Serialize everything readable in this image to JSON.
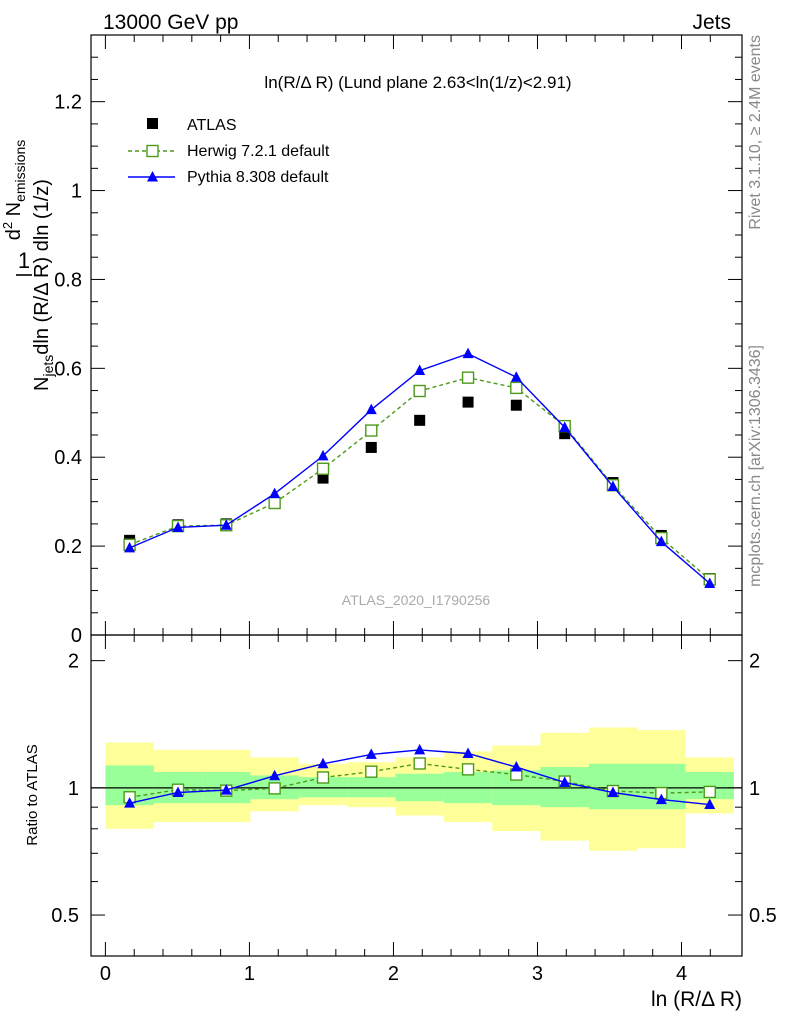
{
  "header": {
    "left": "13000 GeV pp",
    "right": "Jets"
  },
  "side_labels": {
    "rivet": "Rivet 3.1.10, ≥ 2.4M events",
    "mcplots": "mcplots.cern.ch [arXiv:1306.3436]"
  },
  "analysis_id": "ATLAS_2020_I1790256",
  "chart_data": [
    {
      "type": "scatter",
      "panel": "main",
      "title": "ln(R/Δ R) (Lund plane 2.63<ln(1/z)<2.91)",
      "ylabel": "1 / N_jets · d² N_emissions / dln (R/Δ R) dln (1/z)",
      "ylim": [
        0,
        1.35
      ],
      "xlim": [
        -0.1,
        4.42
      ],
      "y_ticks": [
        "0",
        "0.2",
        "0.4",
        "0.6",
        "0.8",
        "1",
        "1.2"
      ],
      "legend_position": "top-left",
      "x": [
        0.168,
        0.504,
        0.839,
        1.175,
        1.511,
        1.846,
        2.182,
        2.518,
        2.853,
        3.189,
        3.524,
        3.86,
        4.196
      ],
      "series": [
        {
          "name": "ATLAS",
          "color": "#000000",
          "marker": "filled-square",
          "values": [
            0.213,
            0.248,
            0.25,
            0.298,
            0.353,
            0.422,
            0.483,
            0.524,
            0.517,
            0.453,
            0.343,
            0.224,
            0.127
          ]
        },
        {
          "name": "Herwig 7.2.1 default",
          "color": "#4d9a1b",
          "marker": "open-square",
          "line": "dashed",
          "values": [
            0.203,
            0.245,
            0.247,
            0.297,
            0.374,
            0.46,
            0.549,
            0.579,
            0.556,
            0.47,
            0.337,
            0.218,
            0.125
          ]
        },
        {
          "name": "Pythia 8.308 default",
          "color": "#0000ff",
          "marker": "filled-triangle",
          "line": "solid",
          "values": [
            0.196,
            0.242,
            0.247,
            0.318,
            0.403,
            0.507,
            0.595,
            0.633,
            0.58,
            0.467,
            0.334,
            0.21,
            0.116
          ]
        }
      ]
    },
    {
      "type": "line",
      "panel": "ratio",
      "ylabel": "Ratio to ATLAS",
      "ylim": [
        0.4,
        2.3
      ],
      "y_ticks": [
        "0.5",
        "1",
        "2"
      ],
      "xlabel": "ln (R/Δ R)",
      "x_ticks": [
        "0",
        "1",
        "2",
        "3",
        "4"
      ],
      "x": [
        0.168,
        0.504,
        0.839,
        1.175,
        1.511,
        1.846,
        2.182,
        2.518,
        2.853,
        3.189,
        3.524,
        3.86,
        4.196
      ],
      "bin_edges": [
        0.0,
        0.336,
        0.672,
        1.007,
        1.343,
        1.679,
        2.014,
        2.35,
        2.686,
        3.021,
        3.357,
        3.692,
        4.028,
        4.364
      ],
      "bands": {
        "yellow_color": "#ffff99",
        "green_color": "#99ff99",
        "yellow_low": [
          0.8,
          0.83,
          0.83,
          0.88,
          0.91,
          0.9,
          0.86,
          0.83,
          0.79,
          0.75,
          0.71,
          0.72,
          0.87
        ],
        "yellow_high": [
          1.28,
          1.23,
          1.23,
          1.18,
          1.14,
          1.15,
          1.18,
          1.22,
          1.26,
          1.35,
          1.39,
          1.37,
          1.18
        ],
        "green_low": [
          0.91,
          0.92,
          0.92,
          0.94,
          0.95,
          0.95,
          0.93,
          0.92,
          0.91,
          0.9,
          0.89,
          0.89,
          0.94
        ],
        "green_high": [
          1.13,
          1.09,
          1.09,
          1.07,
          1.06,
          1.06,
          1.08,
          1.09,
          1.1,
          1.12,
          1.14,
          1.14,
          1.09
        ]
      },
      "series": [
        {
          "name": "Herwig 7.2.1 default",
          "color": "#4d9a1b",
          "marker": "open-square",
          "line": "dashed",
          "values": [
            0.95,
            0.99,
            0.985,
            0.997,
            1.058,
            1.092,
            1.142,
            1.106,
            1.075,
            1.035,
            0.983,
            0.972,
            0.978
          ]
        },
        {
          "name": "Pythia 8.308 default",
          "color": "#0000ff",
          "marker": "filled-triangle",
          "line": "solid",
          "values": [
            0.92,
            0.975,
            0.988,
            1.068,
            1.14,
            1.2,
            1.23,
            1.206,
            1.12,
            1.03,
            0.975,
            0.938,
            0.913
          ]
        }
      ]
    }
  ]
}
